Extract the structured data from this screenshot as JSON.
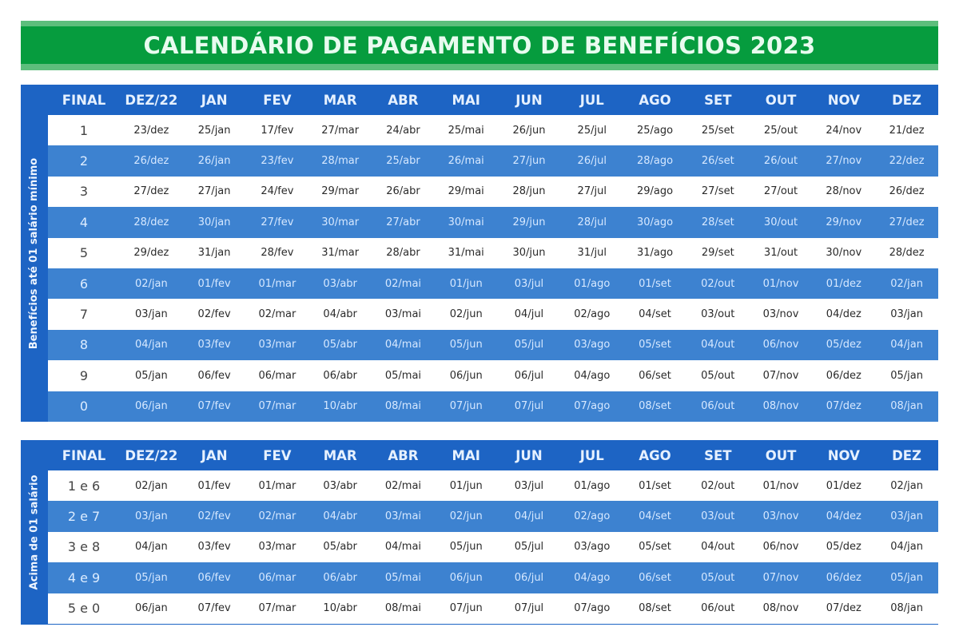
{
  "title": "CALENDÁRIO DE PAGAMENTO DE BENEFÍCIOS 2023",
  "colors": {
    "banner_green": "#069c3e",
    "banner_stripe": "#5dbe7c",
    "header_blue": "#1d64c4",
    "row_blue": "#3d82d0",
    "row_white": "#ffffff"
  },
  "headers": [
    "FINAL",
    "DEZ/22",
    "JAN",
    "FEV",
    "MAR",
    "ABR",
    "MAI",
    "JUN",
    "JUL",
    "AGO",
    "SET",
    "OUT",
    "NOV",
    "DEZ"
  ],
  "table1": {
    "side_label": "Benefícios até 01 salário mínimo",
    "rows": [
      [
        "1",
        "23/dez",
        "25/jan",
        "17/fev",
        "27/mar",
        "24/abr",
        "25/mai",
        "26/jun",
        "25/jul",
        "25/ago",
        "25/set",
        "25/out",
        "24/nov",
        "21/dez"
      ],
      [
        "2",
        "26/dez",
        "26/jan",
        "23/fev",
        "28/mar",
        "25/abr",
        "26/mai",
        "27/jun",
        "26/jul",
        "28/ago",
        "26/set",
        "26/out",
        "27/nov",
        "22/dez"
      ],
      [
        "3",
        "27/dez",
        "27/jan",
        "24/fev",
        "29/mar",
        "26/abr",
        "29/mai",
        "28/jun",
        "27/jul",
        "29/ago",
        "27/set",
        "27/out",
        "28/nov",
        "26/dez"
      ],
      [
        "4",
        "28/dez",
        "30/jan",
        "27/fev",
        "30/mar",
        "27/abr",
        "30/mai",
        "29/jun",
        "28/jul",
        "30/ago",
        "28/set",
        "30/out",
        "29/nov",
        "27/dez"
      ],
      [
        "5",
        "29/dez",
        "31/jan",
        "28/fev",
        "31/mar",
        "28/abr",
        "31/mai",
        "30/jun",
        "31/jul",
        "31/ago",
        "29/set",
        "31/out",
        "30/nov",
        "28/dez"
      ],
      [
        "6",
        "02/jan",
        "01/fev",
        "01/mar",
        "03/abr",
        "02/mai",
        "01/jun",
        "03/jul",
        "01/ago",
        "01/set",
        "02/out",
        "01/nov",
        "01/dez",
        "02/jan"
      ],
      [
        "7",
        "03/jan",
        "02/fev",
        "02/mar",
        "04/abr",
        "03/mai",
        "02/jun",
        "04/jul",
        "02/ago",
        "04/set",
        "03/out",
        "03/nov",
        "04/dez",
        "03/jan"
      ],
      [
        "8",
        "04/jan",
        "03/fev",
        "03/mar",
        "05/abr",
        "04/mai",
        "05/jun",
        "05/jul",
        "03/ago",
        "05/set",
        "04/out",
        "06/nov",
        "05/dez",
        "04/jan"
      ],
      [
        "9",
        "05/jan",
        "06/fev",
        "06/mar",
        "06/abr",
        "05/mai",
        "06/jun",
        "06/jul",
        "04/ago",
        "06/set",
        "05/out",
        "07/nov",
        "06/dez",
        "05/jan"
      ],
      [
        "0",
        "06/jan",
        "07/fev",
        "07/mar",
        "10/abr",
        "08/mai",
        "07/jun",
        "07/jul",
        "07/ago",
        "08/set",
        "06/out",
        "08/nov",
        "07/dez",
        "08/jan"
      ]
    ]
  },
  "table2": {
    "side_label": "Acima de 01 salário",
    "rows": [
      [
        "1 e 6",
        "02/jan",
        "01/fev",
        "01/mar",
        "03/abr",
        "02/mai",
        "01/jun",
        "03/jul",
        "01/ago",
        "01/set",
        "02/out",
        "01/nov",
        "01/dez",
        "02/jan"
      ],
      [
        "2 e 7",
        "03/jan",
        "02/fev",
        "02/mar",
        "04/abr",
        "03/mai",
        "02/jun",
        "04/jul",
        "02/ago",
        "04/set",
        "03/out",
        "03/nov",
        "04/dez",
        "03/jan"
      ],
      [
        "3 e 8",
        "04/jan",
        "03/fev",
        "03/mar",
        "05/abr",
        "04/mai",
        "05/jun",
        "05/jul",
        "03/ago",
        "05/set",
        "04/out",
        "06/nov",
        "05/dez",
        "04/jan"
      ],
      [
        "4 e 9",
        "05/jan",
        "06/fev",
        "06/mar",
        "06/abr",
        "05/mai",
        "06/jun",
        "06/jul",
        "04/ago",
        "06/set",
        "05/out",
        "07/nov",
        "06/dez",
        "05/jan"
      ],
      [
        "5 e 0",
        "06/jan",
        "07/fev",
        "07/mar",
        "10/abr",
        "08/mai",
        "07/jun",
        "07/jul",
        "07/ago",
        "08/set",
        "06/out",
        "08/nov",
        "07/dez",
        "08/jan"
      ]
    ]
  }
}
